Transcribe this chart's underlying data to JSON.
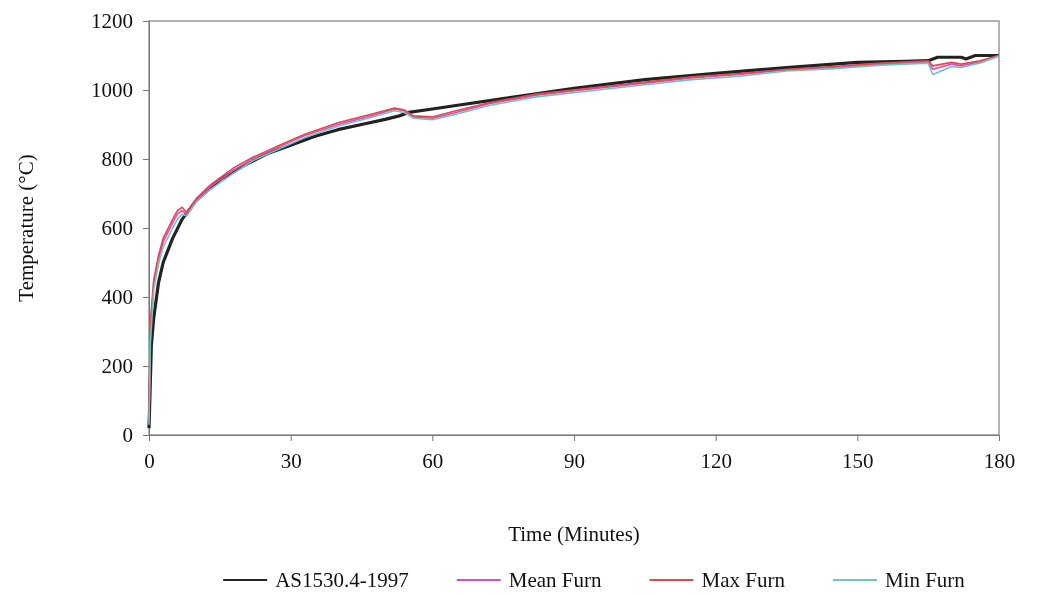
{
  "chart_data": {
    "type": "line",
    "xlabel": "Time (Minutes)",
    "ylabel": "Temperature (°C)",
    "xlim": [
      0,
      180
    ],
    "xticks": [
      0,
      30,
      60,
      90,
      120,
      150,
      180
    ],
    "ylim": [
      0,
      1200
    ],
    "yticks": [
      0,
      200,
      400,
      600,
      800,
      1000,
      1200
    ],
    "grid": false,
    "legend": "bottom",
    "marker": "none",
    "line_style": "solid",
    "series": [
      {
        "name": "AS1530.4-1997",
        "color": "#222222",
        "x": [
          0,
          0.5,
          1,
          2,
          3,
          5,
          7,
          10,
          15,
          20,
          25,
          30,
          35,
          40,
          45,
          50,
          53,
          55,
          60,
          65,
          75,
          90,
          105,
          120,
          135,
          150,
          160,
          165,
          167,
          172,
          173,
          175,
          180
        ],
        "values": [
          20,
          260,
          340,
          440,
          500,
          570,
          625,
          680,
          740,
          780,
          815,
          840,
          865,
          885,
          900,
          915,
          925,
          935,
          945,
          955,
          975,
          1005,
          1030,
          1048,
          1065,
          1080,
          1083,
          1085,
          1095,
          1095,
          1090,
          1100,
          1100
        ]
      },
      {
        "name": "Mean Furn",
        "color": "#d94fb8",
        "x": [
          0,
          0.3,
          1,
          2,
          3,
          5,
          6,
          7,
          8,
          10,
          13,
          18,
          22,
          28,
          33,
          40,
          47,
          52,
          54,
          56,
          60,
          65,
          72,
          82,
          95,
          105,
          115,
          125,
          135,
          145,
          155,
          165,
          166,
          170,
          172,
          176,
          180
        ],
        "values": [
          40,
          300,
          440,
          510,
          560,
          615,
          640,
          650,
          640,
          680,
          720,
          768,
          800,
          838,
          868,
          900,
          925,
          945,
          940,
          922,
          918,
          935,
          960,
          985,
          1005,
          1020,
          1035,
          1045,
          1058,
          1065,
          1075,
          1082,
          1060,
          1075,
          1070,
          1082,
          1100
        ]
      },
      {
        "name": "Max Furn",
        "color": "#e8464f",
        "x": [
          0,
          0.3,
          1,
          2,
          3,
          5,
          6,
          7,
          8,
          10,
          13,
          18,
          22,
          28,
          33,
          40,
          47,
          52,
          54,
          56,
          60,
          65,
          72,
          82,
          95,
          105,
          115,
          125,
          135,
          145,
          155,
          165,
          166,
          170,
          172,
          176,
          180
        ],
        "values": [
          60,
          330,
          450,
          520,
          570,
          625,
          650,
          660,
          645,
          685,
          725,
          775,
          805,
          842,
          872,
          905,
          930,
          948,
          943,
          925,
          922,
          940,
          963,
          988,
          1008,
          1023,
          1038,
          1048,
          1060,
          1068,
          1078,
          1085,
          1070,
          1080,
          1075,
          1085,
          1100
        ]
      },
      {
        "name": "Min Furn",
        "color": "#6cc3c0",
        "x": [
          0,
          0.3,
          1,
          2,
          3,
          5,
          6,
          7,
          8,
          10,
          13,
          18,
          22,
          28,
          33,
          40,
          47,
          52,
          54,
          56,
          60,
          65,
          72,
          82,
          95,
          105,
          115,
          125,
          135,
          145,
          155,
          165,
          166,
          170,
          172,
          176,
          180
        ],
        "values": [
          30,
          270,
          420,
          495,
          545,
          600,
          625,
          640,
          635,
          675,
          712,
          760,
          795,
          832,
          862,
          895,
          920,
          940,
          935,
          918,
          914,
          930,
          955,
          980,
          1000,
          1015,
          1030,
          1040,
          1055,
          1062,
          1072,
          1078,
          1045,
          1068,
          1065,
          1078,
          1098
        ]
      }
    ]
  }
}
